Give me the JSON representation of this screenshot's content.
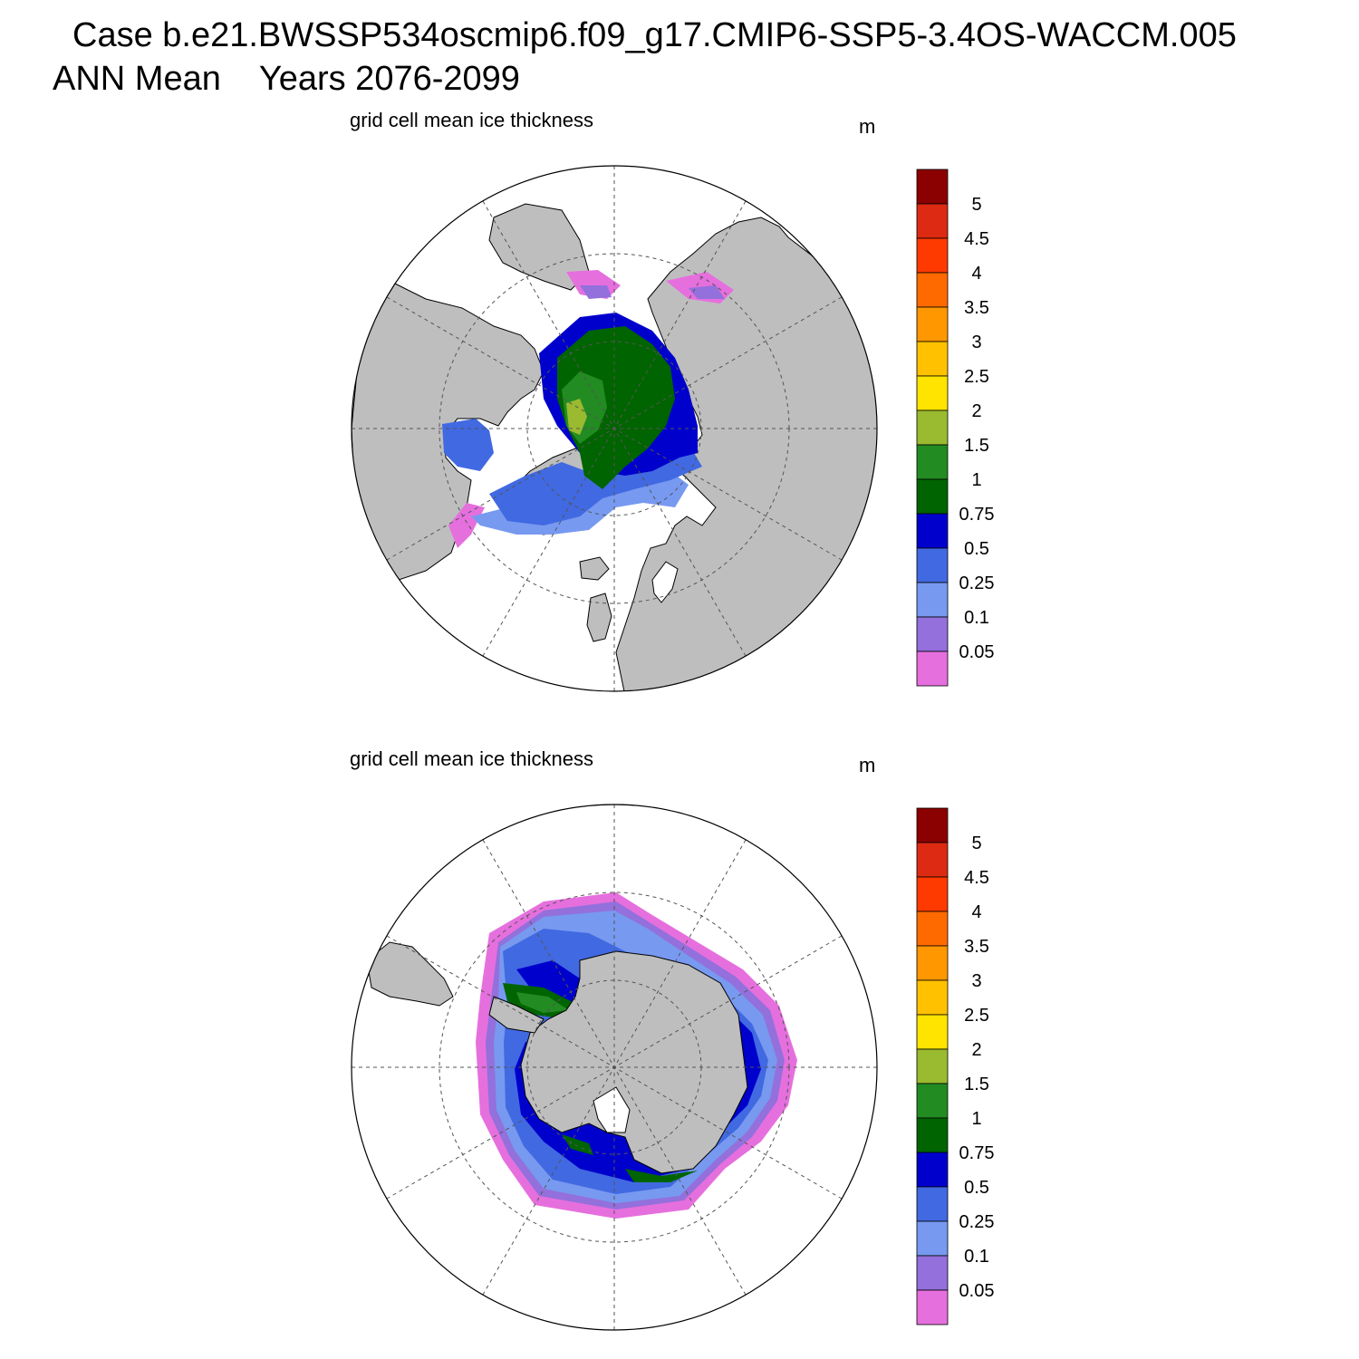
{
  "header": {
    "case_title": "Case b.e21.BWSSP534oscmip6.f09_g17.CMIP6-SSP5-3.4OS-WACCM.005",
    "season": "ANN Mean",
    "years": "Years 2076-2099"
  },
  "panels": [
    {
      "id": "north",
      "hemisphere": "NH",
      "title": "grid cell mean ice thickness",
      "units": "m"
    },
    {
      "id": "south",
      "hemisphere": "SH",
      "title": "grid cell mean ice thickness",
      "units": "m"
    }
  ],
  "colorbar": {
    "labels": [
      "5",
      "4.5",
      "4",
      "3.5",
      "3",
      "2.5",
      "2",
      "1.5",
      "1",
      "0.75",
      "0.5",
      "0.25",
      "0.1",
      "0.05"
    ],
    "colors_top_to_bottom": [
      "#8b0000",
      "#dd2a12",
      "#ff3a00",
      "#ff6a00",
      "#ff9700",
      "#ffc100",
      "#ffe400",
      "#9aba30",
      "#228b22",
      "#006400",
      "#0000cd",
      "#4169e1",
      "#7799f0",
      "#9370db",
      "#e66fde"
    ]
  },
  "map_style": {
    "land_color": "#bebebe",
    "ocean_color": "#ffffff",
    "grid_line_style": "dashed"
  }
}
